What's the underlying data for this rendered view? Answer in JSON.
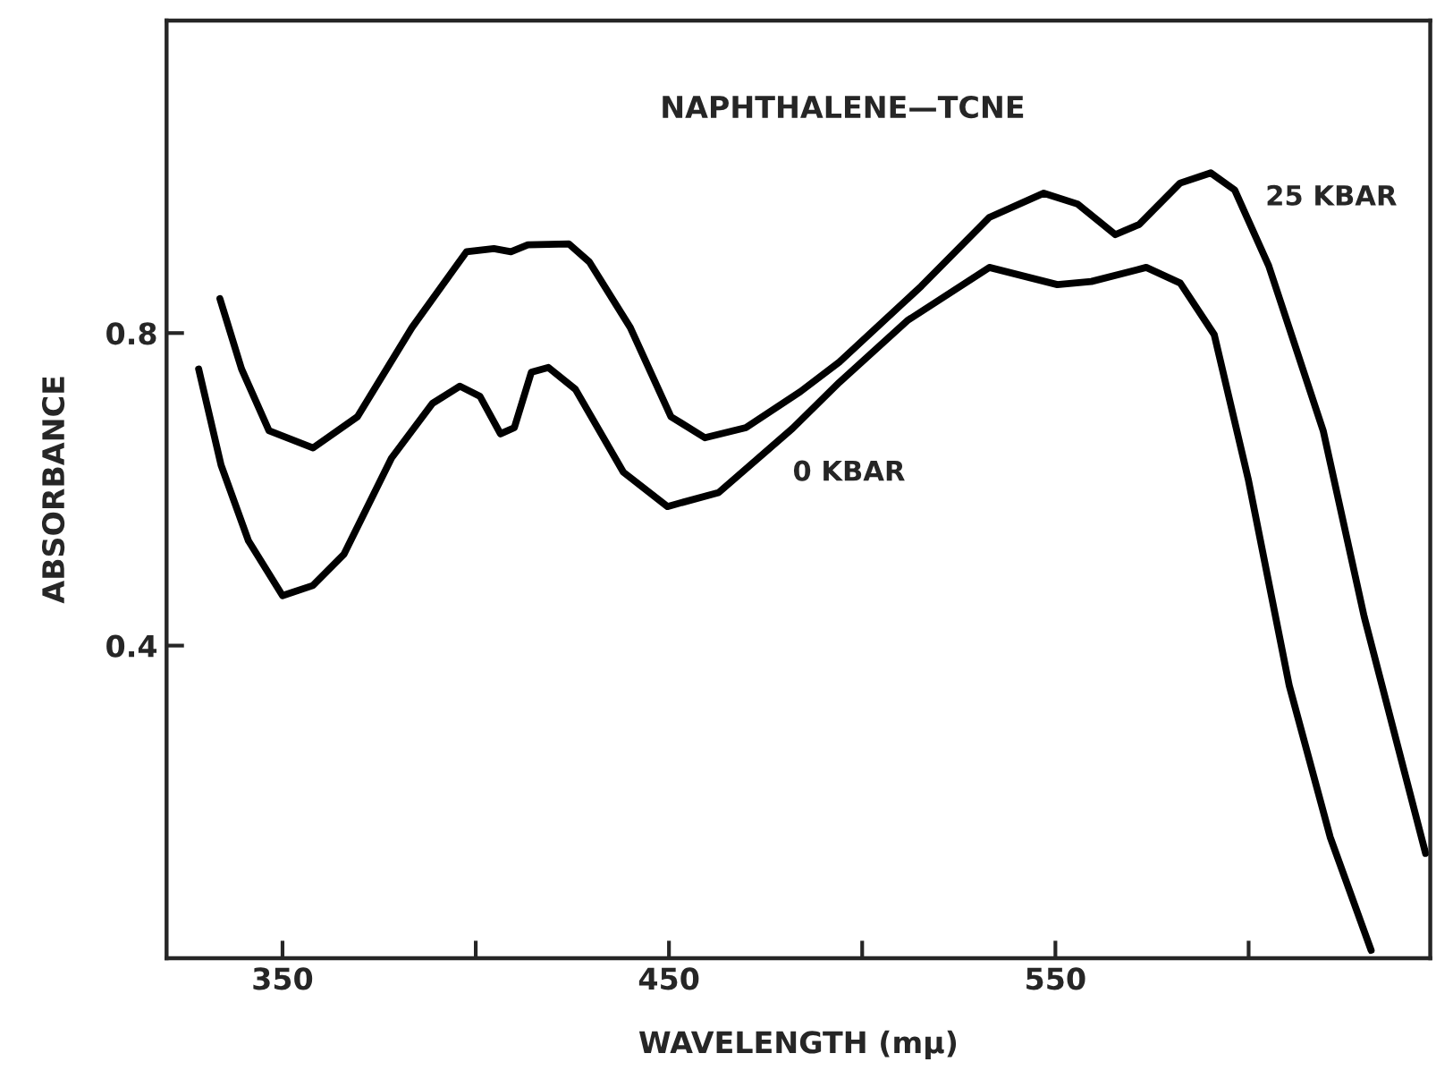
{
  "chart_data": {
    "type": "line",
    "title": "NAPHTHALENE—TCNE",
    "xlabel": "WAVELENGTH (mμ)",
    "ylabel": "ABSORBANCE",
    "xlim": [
      320,
      647
    ],
    "ylim": [
      0,
      1.2
    ],
    "xticks": [
      350,
      {
        "value": 400,
        "label": null
      },
      450,
      {
        "value": 500,
        "label": null
      },
      550,
      {
        "value": 600,
        "label": null
      }
    ],
    "yticks": [
      0.4,
      0.8
    ],
    "grid": false,
    "legend": false,
    "marker": "none",
    "line_style": "solid",
    "series": [
      {
        "name": "25 KBAR",
        "color": "#000000",
        "x": [
          333.8,
          339.4,
          346.5,
          357.9,
          369.4,
          383.5,
          397.6,
          404.7,
          409.1,
          413.5,
          424.1,
          429.4,
          440,
          450.5,
          459.3,
          469.9,
          484,
          494.1,
          515.3,
          532.9,
          547,
          555.8,
          565.5,
          571.7,
          582.3,
          590.2,
          596.4,
          605.2,
          619.3,
          629.9,
          640.5,
          645.8
        ],
        "values": [
          0.844,
          0.754,
          0.675,
          0.653,
          0.693,
          0.807,
          0.904,
          0.908,
          0.904,
          0.913,
          0.914,
          0.891,
          0.807,
          0.693,
          0.666,
          0.679,
          0.725,
          0.763,
          0.86,
          0.948,
          0.979,
          0.965,
          0.926,
          0.939,
          0.992,
          1.005,
          0.983,
          0.886,
          0.675,
          0.437,
          0.235,
          0.134
        ]
      },
      {
        "name": "0 KBAR",
        "color": "#000000",
        "x": [
          328.3,
          334.1,
          341.2,
          350,
          357.9,
          365.9,
          378.2,
          388.8,
          395.9,
          401.1,
          406.4,
          410,
          414.4,
          418.8,
          425.8,
          438.2,
          449.6,
          462.9,
          482,
          494.1,
          511.7,
          532.9,
          550.5,
          559.3,
          573.5,
          582.3,
          591.1,
          599.9,
          610.5,
          621.1,
          631.7
        ],
        "values": [
          0.754,
          0.631,
          0.534,
          0.464,
          0.477,
          0.517,
          0.64,
          0.71,
          0.732,
          0.719,
          0.671,
          0.679,
          0.75,
          0.756,
          0.728,
          0.622,
          0.578,
          0.596,
          0.678,
          0.737,
          0.816,
          0.884,
          0.862,
          0.866,
          0.884,
          0.864,
          0.798,
          0.613,
          0.349,
          0.155,
          0.01
        ]
      }
    ]
  }
}
